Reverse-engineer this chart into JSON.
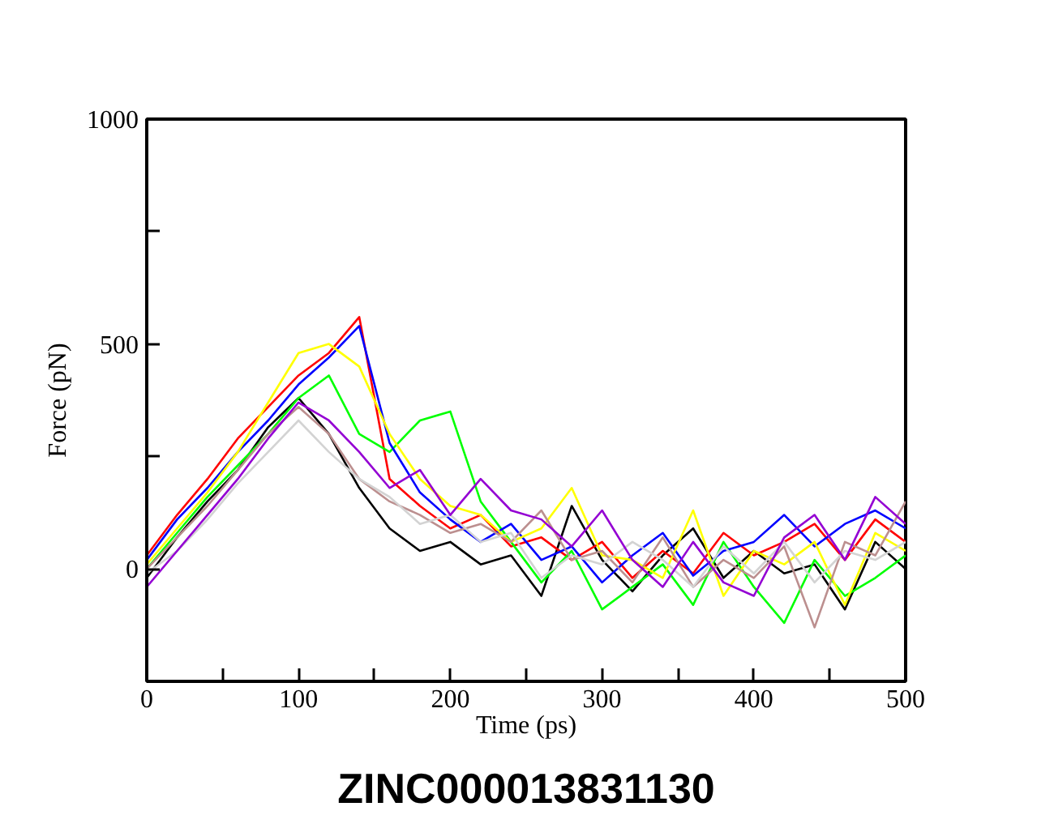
{
  "chart_data": {
    "type": "line",
    "title": "ZINC000013831130",
    "xlabel": "Time (ps)",
    "ylabel": "Force (pN)",
    "x": [
      0,
      20,
      40,
      60,
      80,
      100,
      120,
      140,
      160,
      180,
      200,
      220,
      240,
      260,
      280,
      300,
      320,
      340,
      360,
      380,
      400,
      420,
      440,
      460,
      480,
      500
    ],
    "series": [
      {
        "color": "#000000",
        "values": [
          -20,
          70,
          150,
          220,
          315,
          380,
          300,
          180,
          90,
          40,
          60,
          10,
          30,
          -60,
          140,
          20,
          -50,
          30,
          90,
          -20,
          40,
          -10,
          10,
          -90,
          60,
          0
        ]
      },
      {
        "color": "#ff0000",
        "values": [
          30,
          120,
          200,
          290,
          360,
          430,
          480,
          560,
          200,
          140,
          90,
          120,
          50,
          70,
          20,
          60,
          -20,
          40,
          -10,
          80,
          30,
          60,
          100,
          20,
          110,
          60
        ]
      },
      {
        "color": "#00ff00",
        "values": [
          0,
          80,
          160,
          230,
          300,
          380,
          430,
          300,
          260,
          330,
          350,
          150,
          60,
          -30,
          40,
          -90,
          -40,
          10,
          -80,
          60,
          -40,
          -120,
          20,
          -60,
          -20,
          30
        ]
      },
      {
        "color": "#0000ff",
        "values": [
          20,
          110,
          180,
          260,
          330,
          410,
          470,
          540,
          280,
          170,
          110,
          60,
          100,
          20,
          50,
          -30,
          30,
          80,
          -15,
          40,
          60,
          120,
          50,
          100,
          130,
          90
        ]
      },
      {
        "color": "#ffff00",
        "values": [
          10,
          90,
          170,
          260,
          370,
          480,
          500,
          450,
          300,
          200,
          140,
          120,
          60,
          90,
          180,
          30,
          20,
          -20,
          130,
          -60,
          40,
          10,
          60,
          -80,
          80,
          40
        ]
      },
      {
        "color": "#bc8f8f",
        "values": [
          0,
          70,
          140,
          220,
          300,
          360,
          300,
          200,
          150,
          120,
          80,
          100,
          60,
          130,
          20,
          40,
          -30,
          70,
          -40,
          20,
          -20,
          50,
          -130,
          60,
          30,
          150
        ]
      },
      {
        "color": "#d3d3d3",
        "values": [
          -10,
          40,
          110,
          190,
          260,
          330,
          260,
          200,
          160,
          100,
          120,
          60,
          80,
          -20,
          30,
          10,
          60,
          20,
          -40,
          50,
          -10,
          60,
          -30,
          40,
          20,
          60
        ]
      },
      {
        "color": "#9400d3",
        "values": [
          -40,
          40,
          120,
          200,
          290,
          370,
          330,
          260,
          180,
          220,
          120,
          200,
          130,
          110,
          50,
          130,
          20,
          -40,
          60,
          -30,
          -60,
          70,
          120,
          20,
          160,
          100
        ]
      }
    ],
    "xlim": [
      0,
      500
    ],
    "ylim": [
      -250,
      1000
    ],
    "xticks": [
      0,
      {
        "value": 50,
        "label": null
      },
      100,
      {
        "value": 150,
        "label": null
      },
      200,
      {
        "value": 250,
        "label": null
      },
      300,
      {
        "value": 350,
        "label": null
      },
      400,
      {
        "value": 450,
        "label": null
      },
      500
    ],
    "yticks": [
      {
        "value": -250,
        "label": null
      },
      0,
      {
        "value": 250,
        "label": null
      },
      500,
      {
        "value": 750,
        "label": null
      },
      1000
    ],
    "grid": false,
    "marker": "none",
    "line_style": "solid"
  }
}
